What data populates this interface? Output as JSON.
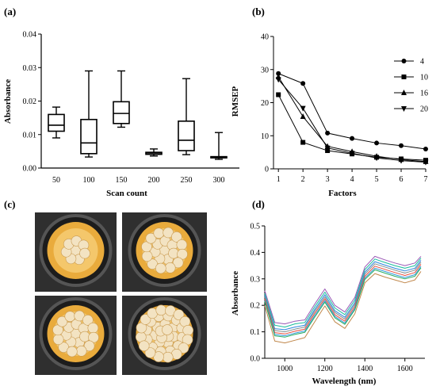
{
  "panel_labels": {
    "a": "(a)",
    "b": "(b)",
    "c": "(c)",
    "d": "(d)"
  },
  "chart_data": [
    {
      "panel": "(a)",
      "type": "box",
      "xlabel": "Scan count",
      "ylabel": "Absorbance",
      "categories": [
        "50",
        "100",
        "150",
        "200",
        "250",
        "300"
      ],
      "boxes": [
        {
          "min": 0.009,
          "q1": 0.011,
          "median": 0.0128,
          "q3": 0.016,
          "max": 0.0182
        },
        {
          "min": 0.0033,
          "q1": 0.0043,
          "median": 0.0075,
          "q3": 0.0145,
          "max": 0.029
        },
        {
          "min": 0.0122,
          "q1": 0.0133,
          "median": 0.0163,
          "q3": 0.0198,
          "max": 0.029
        },
        {
          "min": 0.0036,
          "q1": 0.0041,
          "median": 0.0045,
          "q3": 0.0047,
          "max": 0.0057
        },
        {
          "min": 0.004,
          "q1": 0.0052,
          "median": 0.0083,
          "q3": 0.014,
          "max": 0.0267
        },
        {
          "min": 0.0026,
          "q1": 0.0031,
          "median": 0.0033,
          "q3": 0.0034,
          "max": 0.0106
        }
      ],
      "ylim": [
        0,
        0.04
      ],
      "yticks": [
        "0.00",
        "0.01",
        "0.02",
        "0.03",
        "0.04"
      ],
      "grid": false
    },
    {
      "panel": "(b)",
      "type": "line",
      "xlabel": "Factors",
      "ylabel": "RMSEP",
      "x": [
        1,
        2,
        3,
        4,
        5,
        6,
        7
      ],
      "xticks": [
        "1",
        "2",
        "3",
        "4",
        "5",
        "6",
        "7"
      ],
      "yticks": [
        "0",
        "10",
        "20",
        "30",
        "40"
      ],
      "xlim": [
        0.8,
        7
      ],
      "ylim": [
        0,
        40
      ],
      "legend_position": "right",
      "series": [
        {
          "name": "4",
          "marker": "circle",
          "values": [
            28.8,
            25.8,
            10.8,
            9.2,
            7.8,
            7.0,
            6.0
          ]
        },
        {
          "name": "10",
          "marker": "square",
          "values": [
            22.4,
            8.0,
            5.5,
            4.5,
            3.5,
            3.0,
            2.6
          ]
        },
        {
          "name": "16",
          "marker": "triangle",
          "values": [
            27.8,
            15.8,
            6.8,
            5.2,
            3.8,
            2.8,
            2.2
          ]
        },
        {
          "name": "20",
          "marker": "triangle-down",
          "values": [
            27.0,
            18.3,
            6.3,
            4.7,
            3.3,
            2.5,
            2.0
          ]
        }
      ],
      "grid": false
    },
    {
      "panel": "(d)",
      "type": "line",
      "xlabel": "Wavelength (nm)",
      "ylabel": "Absorbance",
      "xlim": [
        900,
        1700
      ],
      "ylim": [
        0.0,
        0.5
      ],
      "xticks": [
        "1000",
        "1200",
        "1400",
        "1600"
      ],
      "yticks": [
        "0.0",
        "0.1",
        "0.2",
        "0.3",
        "0.4",
        "0.5"
      ],
      "x": [
        900,
        950,
        1000,
        1050,
        1100,
        1150,
        1200,
        1250,
        1300,
        1350,
        1400,
        1450,
        1500,
        1550,
        1600,
        1650,
        1680
      ],
      "series": [
        {
          "color": "#9b59b6",
          "values": [
            0.255,
            0.135,
            0.13,
            0.14,
            0.145,
            0.205,
            0.262,
            0.2,
            0.175,
            0.23,
            0.345,
            0.385,
            0.372,
            0.36,
            0.35,
            0.36,
            0.385
          ]
        },
        {
          "color": "#1abc9c",
          "values": [
            0.245,
            0.125,
            0.118,
            0.13,
            0.135,
            0.195,
            0.25,
            0.19,
            0.165,
            0.22,
            0.335,
            0.375,
            0.362,
            0.35,
            0.34,
            0.35,
            0.378
          ]
        },
        {
          "color": "#2e86de",
          "values": [
            0.238,
            0.112,
            0.108,
            0.118,
            0.125,
            0.185,
            0.24,
            0.18,
            0.155,
            0.21,
            0.325,
            0.365,
            0.352,
            0.34,
            0.33,
            0.34,
            0.37
          ]
        },
        {
          "color": "#7f8c8d",
          "values": [
            0.232,
            0.105,
            0.1,
            0.11,
            0.118,
            0.178,
            0.232,
            0.173,
            0.148,
            0.203,
            0.318,
            0.357,
            0.345,
            0.333,
            0.322,
            0.333,
            0.363
          ]
        },
        {
          "color": "#e74c3c",
          "values": [
            0.225,
            0.097,
            0.092,
            0.102,
            0.11,
            0.17,
            0.225,
            0.165,
            0.14,
            0.195,
            0.31,
            0.348,
            0.336,
            0.324,
            0.313,
            0.324,
            0.355
          ]
        },
        {
          "color": "#3498db",
          "values": [
            0.218,
            0.09,
            0.085,
            0.095,
            0.103,
            0.162,
            0.218,
            0.158,
            0.133,
            0.188,
            0.303,
            0.34,
            0.328,
            0.316,
            0.305,
            0.316,
            0.347
          ]
        },
        {
          "color": "#27ae60",
          "values": [
            0.215,
            0.085,
            0.08,
            0.09,
            0.098,
            0.156,
            0.212,
            0.153,
            0.128,
            0.183,
            0.298,
            0.334,
            0.322,
            0.31,
            0.3,
            0.31,
            0.342
          ]
        },
        {
          "color": "#c0874a",
          "values": [
            0.2,
            0.065,
            0.058,
            0.068,
            0.078,
            0.138,
            0.198,
            0.138,
            0.113,
            0.168,
            0.285,
            0.32,
            0.307,
            0.296,
            0.285,
            0.296,
            0.328
          ]
        }
      ],
      "grid": false
    }
  ],
  "photos": {
    "frame_color": "#2f2f2f",
    "cup_color": "#e9ab3c",
    "ball_color": "#f3e3c2",
    "ball_counts": [
      8,
      20,
      20,
      40
    ]
  }
}
